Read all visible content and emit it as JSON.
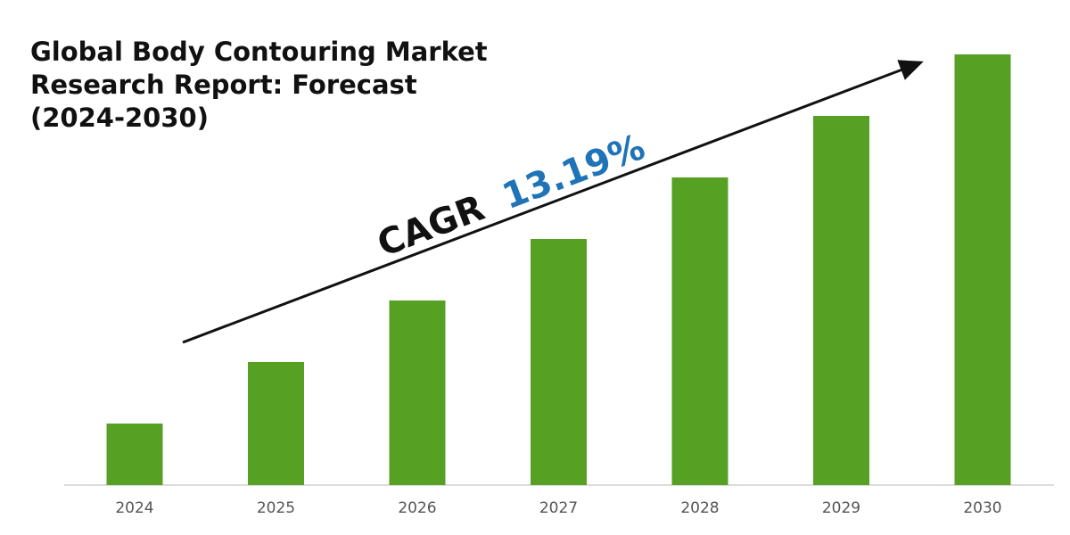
{
  "title_lines": [
    "Global Body Contouring Market",
    "Research Report: Forecast",
    "(2024-2030)"
  ],
  "annotation": {
    "prefix": "CAGR",
    "value": "13.19%",
    "value_color": "#1f73b7",
    "prefix_color": "#111111"
  },
  "colors": {
    "bar": "#56a024",
    "axis": "#d0d0d0",
    "arrow": "#111111"
  },
  "chart_data": {
    "type": "bar",
    "title": "Global Body Contouring Market Research Report: Forecast (2024-2030)",
    "categories": [
      "2024",
      "2025",
      "2026",
      "2027",
      "2028",
      "2029",
      "2030"
    ],
    "values": [
      1.0,
      2.0,
      3.0,
      4.0,
      5.0,
      6.0,
      7.0
    ],
    "xlabel": "",
    "ylabel": "",
    "ylim": [
      0,
      7
    ],
    "grid": false,
    "legend": "none",
    "annotation": "CAGR 13.19%"
  }
}
